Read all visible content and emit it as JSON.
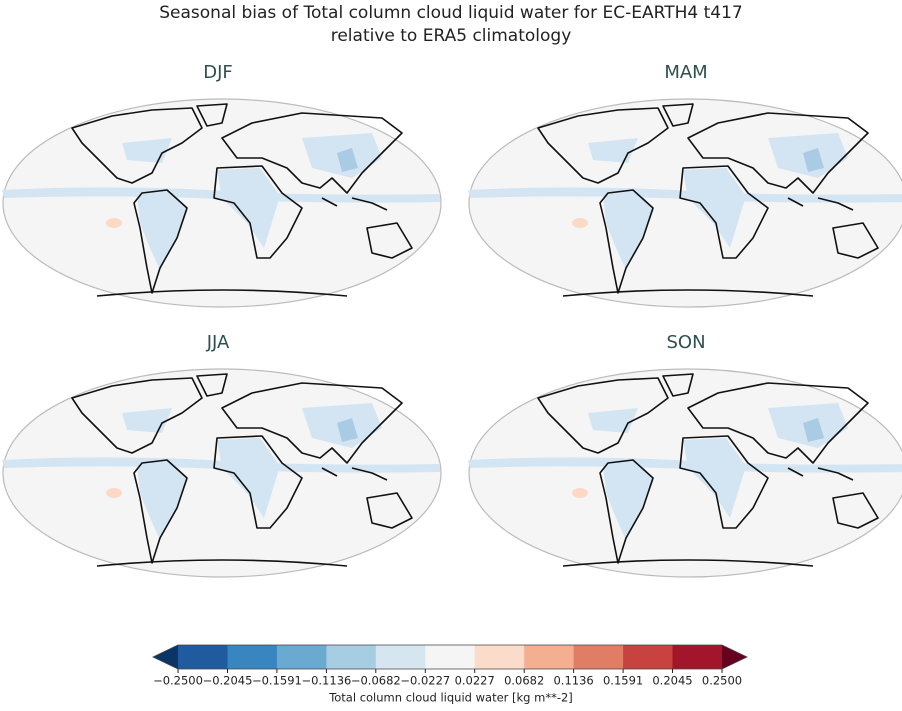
{
  "title": "Seasonal bias of Total column cloud liquid water for EC-EARTH4 t417",
  "subtitle": "relative to ERA5 climatology",
  "panels": [
    "DJF",
    "MAM",
    "JJA",
    "SON"
  ],
  "colorbar": {
    "label": "Total column cloud liquid water [kg m**-2]",
    "ticks": [
      {
        "value": -0.25,
        "label": "−0.2500"
      },
      {
        "value": -0.2045,
        "label": "−0.2045"
      },
      {
        "value": -0.1591,
        "label": "−0.1591"
      },
      {
        "value": -0.1136,
        "label": "−0.1136"
      },
      {
        "value": -0.0682,
        "label": "−0.0682"
      },
      {
        "value": -0.0227,
        "label": "−0.0227"
      },
      {
        "value": 0.0227,
        "label": "0.0227"
      },
      {
        "value": 0.0682,
        "label": "0.0682"
      },
      {
        "value": 0.1136,
        "label": "0.1136"
      },
      {
        "value": 0.1591,
        "label": "0.1591"
      },
      {
        "value": 0.2045,
        "label": "0.2045"
      },
      {
        "value": 0.25,
        "label": "0.2500"
      }
    ],
    "under_color": "#0b3567",
    "over_color": "#67001f",
    "colors": [
      "#1f5b9e",
      "#3885bf",
      "#6aa9d0",
      "#a7cde3",
      "#d5e6f1",
      "#f5f5f5",
      "#fbdccb",
      "#f4ae91",
      "#e17d64",
      "#c8433f",
      "#a3152b"
    ]
  }
}
